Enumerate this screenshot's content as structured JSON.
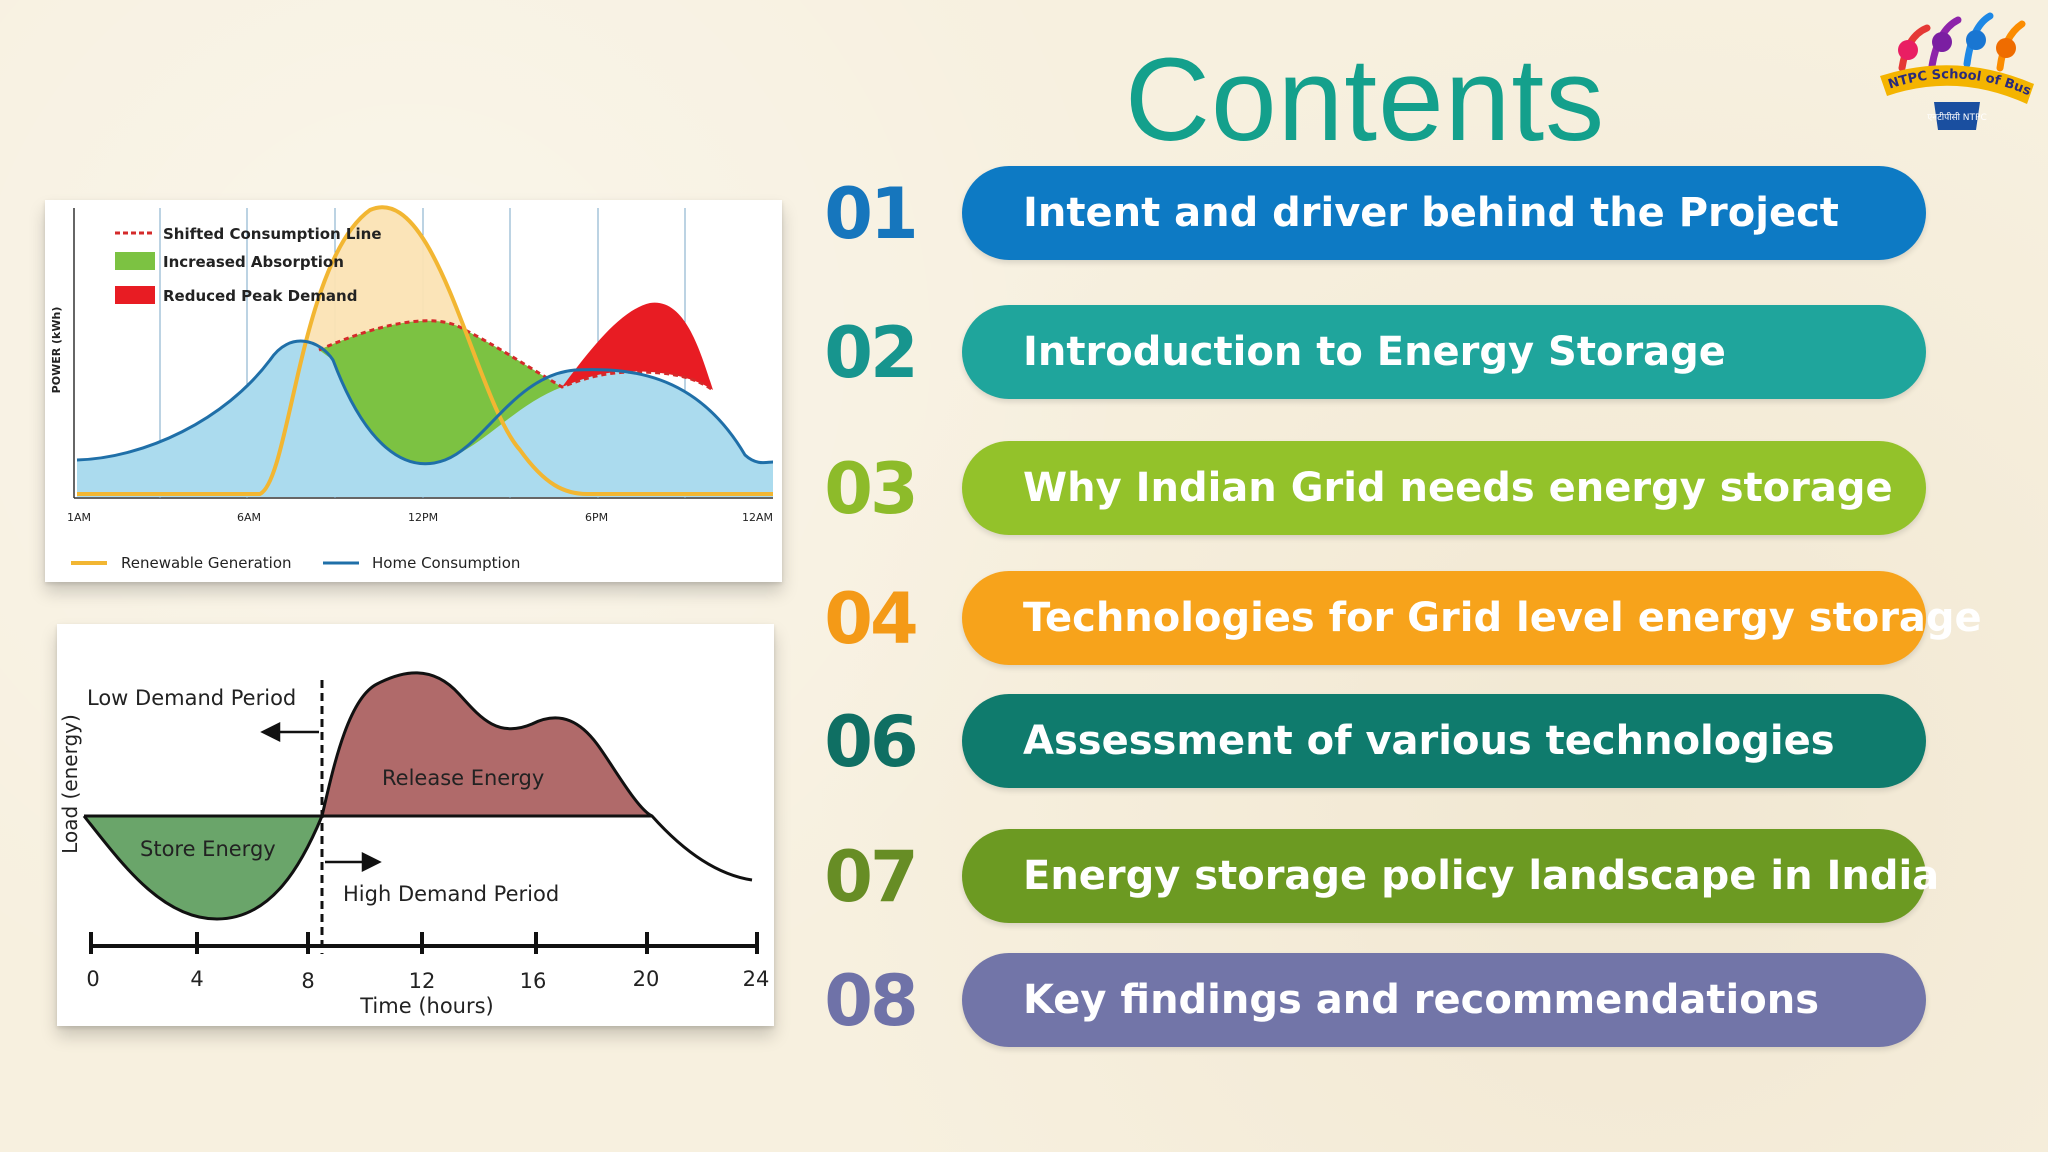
{
  "title": "Contents",
  "logo": {
    "text": "NTPC School of Business",
    "subtext": "एनटीपीसी NTPC"
  },
  "chart_top": {
    "type": "area",
    "ylabel": "POWER (kWh)",
    "x_ticks": [
      "1AM",
      "6AM",
      "12PM",
      "6PM",
      "12AM"
    ],
    "legend_top": [
      {
        "label": "Shifted Consumption Line",
        "color": "#e02020"
      },
      {
        "label": "Increased Absorption",
        "color": "#7cc242"
      },
      {
        "label": "Reduced Peak Demand",
        "color": "#e81c23"
      }
    ],
    "legend_bottom": [
      {
        "label": "Renewable Generation",
        "color": "#f2b632"
      },
      {
        "label": "Home Consumption",
        "color": "#1f6fa8"
      }
    ]
  },
  "chart_bottom": {
    "type": "line",
    "xlabel": "Time (hours)",
    "ylabel": "Load (energy)",
    "x_ticks": [
      "0",
      "4",
      "8",
      "12",
      "16",
      "20",
      "24"
    ],
    "labels": {
      "low": "Low Demand Period",
      "high": "High Demand Period",
      "store": "Store Energy",
      "release": "Release Energy"
    },
    "colors": {
      "store": "#6aa56a",
      "release": "#b06a6a"
    }
  },
  "items": [
    {
      "num": "01",
      "label": "Intent and driver behind the Project",
      "num_color": "#1676bd",
      "color": "#0d7ac4"
    },
    {
      "num": "02",
      "label": "Introduction to Energy Storage",
      "num_color": "#17958e",
      "color": "#1fa59c"
    },
    {
      "num": "03",
      "label": "Why Indian Grid needs energy storage",
      "num_color": "#8dbb2a",
      "color": "#93c22a"
    },
    {
      "num": "04",
      "label": "Technologies for Grid level energy storage",
      "num_color": "#f49a17",
      "color": "#f7a31b"
    },
    {
      "num": "06",
      "label": "Assessment of various technologies",
      "num_color": "#0f6f63",
      "color": "#0f7b6d"
    },
    {
      "num": "07",
      "label": "Energy storage policy landscape in India",
      "num_color": "#678d25",
      "color": "#6c9a22"
    },
    {
      "num": "08",
      "label": "Key findings and recommendations",
      "num_color": "#6f72a8",
      "color": "#7275a8"
    }
  ]
}
